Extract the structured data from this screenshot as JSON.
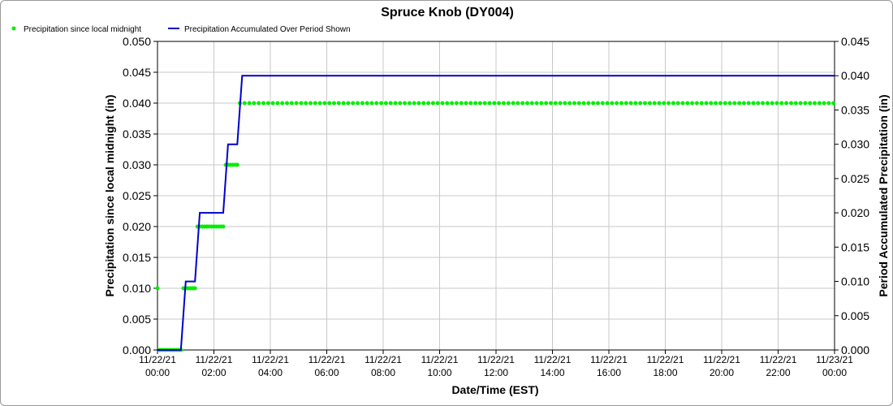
{
  "chart_data": {
    "type": "line",
    "title": "Spruce Knob (DY004)",
    "xlabel": "Date/Time (EST)",
    "ylabel_left": "Precipitation since local midnight (in)",
    "ylabel_right": "Period Accumulated Precipitation (in)",
    "ylim_left": [
      0,
      0.05
    ],
    "ylim_right": [
      0,
      0.045
    ],
    "yticks_left": [
      "0.000",
      "0.005",
      "0.010",
      "0.015",
      "0.020",
      "0.025",
      "0.030",
      "0.035",
      "0.040",
      "0.045",
      "0.050"
    ],
    "yticks_right": [
      "0.000",
      "0.005",
      "0.010",
      "0.015",
      "0.020",
      "0.025",
      "0.030",
      "0.035",
      "0.040",
      "0.045"
    ],
    "x_range_hours": [
      0,
      24
    ],
    "xticks": [
      {
        "date": "11/22/21",
        "time": "00:00"
      },
      {
        "date": "11/22/21",
        "time": "02:00"
      },
      {
        "date": "11/22/21",
        "time": "04:00"
      },
      {
        "date": "11/22/21",
        "time": "06:00"
      },
      {
        "date": "11/22/21",
        "time": "08:00"
      },
      {
        "date": "11/22/21",
        "time": "10:00"
      },
      {
        "date": "11/22/21",
        "time": "12:00"
      },
      {
        "date": "11/22/21",
        "time": "14:00"
      },
      {
        "date": "11/22/21",
        "time": "16:00"
      },
      {
        "date": "11/22/21",
        "time": "18:00"
      },
      {
        "date": "11/22/21",
        "time": "20:00"
      },
      {
        "date": "11/22/21",
        "time": "22:00"
      },
      {
        "date": "11/23/21",
        "time": "00:00"
      }
    ],
    "grid": true,
    "legend_position": "top-left",
    "series": [
      {
        "name": "Precipitation since local midnight",
        "style": "points",
        "color": "#00ee00",
        "axis": "left",
        "points": [
          [
            0.0,
            0.01
          ],
          [
            0.08,
            0.0
          ],
          [
            0.17,
            0.0
          ],
          [
            0.25,
            0.0
          ],
          [
            0.33,
            0.0
          ],
          [
            0.42,
            0.0
          ],
          [
            0.5,
            0.0
          ],
          [
            0.58,
            0.0
          ],
          [
            0.67,
            0.0
          ],
          [
            0.75,
            0.0
          ],
          [
            0.83,
            0.0
          ],
          [
            0.92,
            0.01
          ],
          [
            1.0,
            0.01
          ],
          [
            1.08,
            0.01
          ],
          [
            1.17,
            0.01
          ],
          [
            1.25,
            0.01
          ],
          [
            1.33,
            0.01
          ],
          [
            1.42,
            0.02
          ],
          [
            1.5,
            0.02
          ],
          [
            1.58,
            0.02
          ],
          [
            1.67,
            0.02
          ],
          [
            1.75,
            0.02
          ],
          [
            1.83,
            0.02
          ],
          [
            1.92,
            0.02
          ],
          [
            2.0,
            0.02
          ],
          [
            2.08,
            0.02
          ],
          [
            2.17,
            0.02
          ],
          [
            2.25,
            0.02
          ],
          [
            2.33,
            0.02
          ],
          [
            2.42,
            0.03
          ],
          [
            2.5,
            0.03
          ],
          [
            2.58,
            0.03
          ],
          [
            2.67,
            0.03
          ],
          [
            2.75,
            0.03
          ],
          [
            2.83,
            0.03
          ],
          {
            "from": 2.92,
            "to": 24.0,
            "step": 0.167,
            "value": 0.04
          }
        ]
      },
      {
        "name": "Precipitation Accumulated Over Period Shown",
        "style": "step-line",
        "color": "#0000cc",
        "axis": "right",
        "points": [
          [
            0.0,
            0.0
          ],
          [
            0.83,
            0.0
          ],
          [
            1.0,
            0.01
          ],
          [
            1.33,
            0.01
          ],
          [
            1.5,
            0.02
          ],
          [
            2.33,
            0.02
          ],
          [
            2.5,
            0.03
          ],
          [
            2.83,
            0.03
          ],
          [
            3.0,
            0.04
          ],
          [
            24.0,
            0.04
          ]
        ]
      }
    ]
  }
}
